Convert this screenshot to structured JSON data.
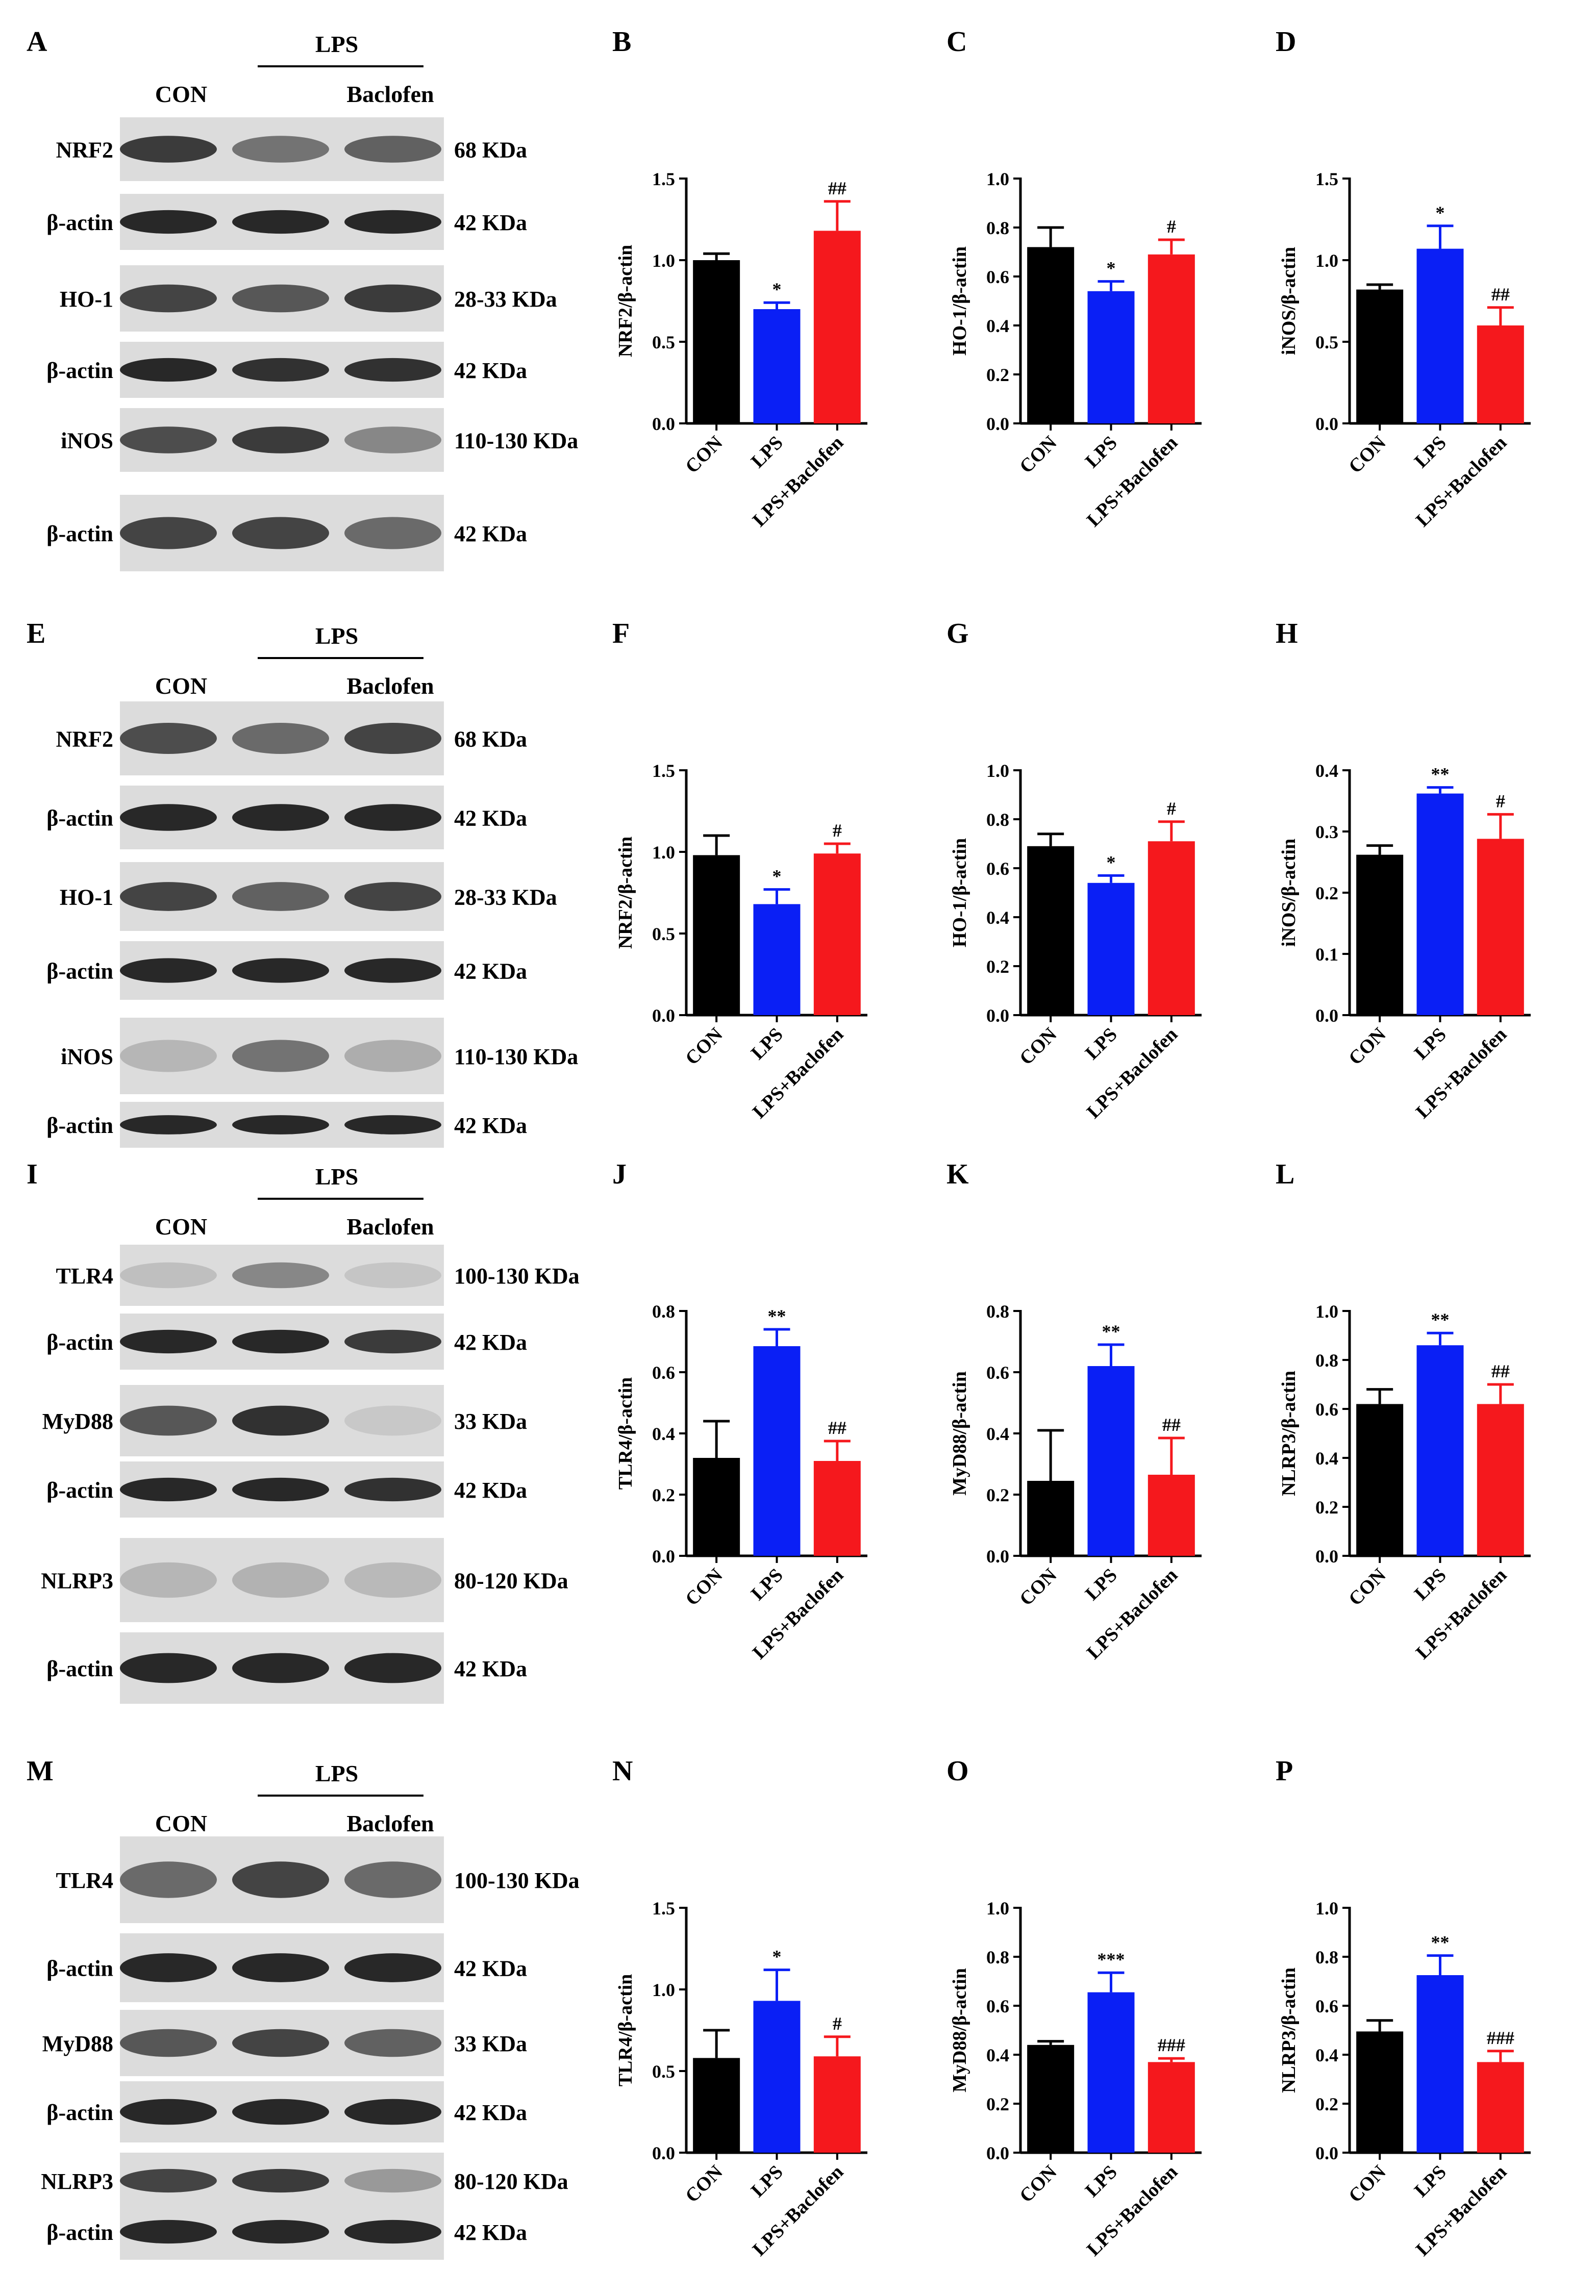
{
  "colors": {
    "CON": "#000000",
    "LPS": "#0a1ff5",
    "LPS+Baclofen": "#f5181d",
    "blot_bg": "#dcdcdc",
    "band": "#1e1e1e"
  },
  "blots": [
    {
      "letter": "A",
      "lps_label": "LPS",
      "con_label": "CON",
      "baclofen_label": "Baclofen",
      "rows": [
        {
          "name": "NRF2",
          "kda": "68 KDa",
          "intensity": [
            0.85,
            0.55,
            0.65
          ]
        },
        {
          "name": "β-actin",
          "kda": "42 KDa",
          "intensity": [
            0.95,
            0.95,
            0.95
          ]
        },
        {
          "name": "HO-1",
          "kda": "28-33 KDa",
          "intensity": [
            0.8,
            0.7,
            0.85
          ]
        },
        {
          "name": "β-actin",
          "kda": "42 KDa",
          "intensity": [
            0.95,
            0.9,
            0.9
          ]
        },
        {
          "name": "iNOS",
          "kda": "110-130 KDa",
          "intensity": [
            0.75,
            0.85,
            0.45
          ]
        },
        {
          "name": "β-actin",
          "kda": "42 KDa",
          "intensity": [
            0.8,
            0.8,
            0.6
          ]
        }
      ]
    },
    {
      "letter": "E",
      "lps_label": "LPS",
      "con_label": "CON",
      "baclofen_label": "Baclofen",
      "rows": [
        {
          "name": "NRF2",
          "kda": "68 KDa",
          "intensity": [
            0.75,
            0.6,
            0.8
          ]
        },
        {
          "name": "β-actin",
          "kda": "42 KDa",
          "intensity": [
            0.95,
            0.95,
            0.95
          ]
        },
        {
          "name": "HO-1",
          "kda": "28-33 KDa",
          "intensity": [
            0.8,
            0.65,
            0.8
          ]
        },
        {
          "name": "β-actin",
          "kda": "42 KDa",
          "intensity": [
            0.95,
            0.95,
            0.95
          ]
        },
        {
          "name": "iNOS",
          "kda": "110-130 KDa",
          "intensity": [
            0.2,
            0.55,
            0.25
          ]
        },
        {
          "name": "β-actin",
          "kda": "42 KDa",
          "intensity": [
            0.95,
            0.95,
            0.95
          ]
        }
      ]
    },
    {
      "letter": "I",
      "lps_label": "LPS",
      "con_label": "CON",
      "baclofen_label": "Baclofen",
      "rows": [
        {
          "name": "TLR4",
          "kda": "100-130 KDa",
          "intensity": [
            0.15,
            0.45,
            0.12
          ]
        },
        {
          "name": "β-actin",
          "kda": "42 KDa",
          "intensity": [
            0.95,
            0.95,
            0.85
          ]
        },
        {
          "name": "MyD88",
          "kda": "33 KDa",
          "intensity": [
            0.7,
            0.9,
            0.1
          ]
        },
        {
          "name": "β-actin",
          "kda": "42 KDa",
          "intensity": [
            0.95,
            0.95,
            0.9
          ]
        },
        {
          "name": "NLRP3",
          "kda": "80-120 KDa",
          "intensity": [
            0.2,
            0.22,
            0.18
          ]
        },
        {
          "name": "β-actin",
          "kda": "42 KDa",
          "intensity": [
            0.95,
            0.95,
            0.95
          ]
        }
      ]
    },
    {
      "letter": "M",
      "lps_label": "LPS",
      "con_label": "CON",
      "baclofen_label": "Baclofen",
      "rows": [
        {
          "name": "TLR4",
          "kda": "100-130 KDa",
          "intensity": [
            0.6,
            0.8,
            0.6
          ]
        },
        {
          "name": "β-actin",
          "kda": "42 KDa",
          "intensity": [
            0.95,
            0.95,
            0.95
          ]
        },
        {
          "name": "MyD88",
          "kda": "33 KDa",
          "intensity": [
            0.7,
            0.8,
            0.65
          ]
        },
        {
          "name": "β-actin",
          "kda": "42 KDa",
          "intensity": [
            0.95,
            0.95,
            0.95
          ]
        },
        {
          "name": "NLRP3",
          "kda": "80-120 KDa",
          "intensity": [
            0.8,
            0.85,
            0.35
          ]
        },
        {
          "name": "β-actin",
          "kda": "42 KDa",
          "intensity": [
            0.95,
            0.95,
            0.95
          ]
        }
      ]
    }
  ],
  "chart_data": [
    {
      "letter": "B",
      "type": "bar",
      "ylabel": "NRF2/β-actin",
      "categories": [
        "CON",
        "LPS",
        "LPS+Baclofen"
      ],
      "values": [
        1.0,
        0.7,
        1.18
      ],
      "errors": [
        0.04,
        0.04,
        0.18
      ],
      "sig": [
        "",
        "*",
        "##"
      ],
      "ylim": [
        0,
        1.5
      ],
      "yticks": [
        "0.0",
        "0.5",
        "1.0",
        "1.5"
      ]
    },
    {
      "letter": "C",
      "type": "bar",
      "ylabel": "HO-1/β-actin",
      "categories": [
        "CON",
        "LPS",
        "LPS+Baclofen"
      ],
      "values": [
        0.72,
        0.54,
        0.69
      ],
      "errors": [
        0.08,
        0.04,
        0.06
      ],
      "sig": [
        "",
        "*",
        "#"
      ],
      "ylim": [
        0,
        1.0
      ],
      "yticks": [
        "0.0",
        "0.2",
        "0.4",
        "0.6",
        "0.8",
        "1.0"
      ]
    },
    {
      "letter": "D",
      "type": "bar",
      "ylabel": "iNOS/β-actin",
      "categories": [
        "CON",
        "LPS",
        "LPS+Baclofen"
      ],
      "values": [
        0.82,
        1.07,
        0.6
      ],
      "errors": [
        0.03,
        0.14,
        0.11
      ],
      "sig": [
        "",
        "*",
        "##"
      ],
      "ylim": [
        0,
        1.5
      ],
      "yticks": [
        "0.0",
        "0.5",
        "1.0",
        "1.5"
      ]
    },
    {
      "letter": "F",
      "type": "bar",
      "ylabel": "NRF2/β-actin",
      "categories": [
        "CON",
        "LPS",
        "LPS+Baclofen"
      ],
      "values": [
        0.98,
        0.68,
        0.99
      ],
      "errors": [
        0.12,
        0.09,
        0.06
      ],
      "sig": [
        "",
        "*",
        "#"
      ],
      "ylim": [
        0,
        1.5
      ],
      "yticks": [
        "0.0",
        "0.5",
        "1.0",
        "1.5"
      ]
    },
    {
      "letter": "G",
      "type": "bar",
      "ylabel": "HO-1/β-actin",
      "categories": [
        "CON",
        "LPS",
        "LPS+Baclofen"
      ],
      "values": [
        0.69,
        0.54,
        0.71
      ],
      "errors": [
        0.05,
        0.03,
        0.08
      ],
      "sig": [
        "",
        "*",
        "#"
      ],
      "ylim": [
        0,
        1.0
      ],
      "yticks": [
        "0.0",
        "0.2",
        "0.4",
        "0.6",
        "0.8",
        "1.0"
      ]
    },
    {
      "letter": "H",
      "type": "bar",
      "ylabel": "iNOS/β-actin",
      "categories": [
        "CON",
        "LPS",
        "LPS+Baclofen"
      ],
      "values": [
        0.262,
        0.362,
        0.288
      ],
      "errors": [
        0.015,
        0.01,
        0.04
      ],
      "sig": [
        "",
        "**",
        "#"
      ],
      "ylim": [
        0,
        0.4
      ],
      "yticks": [
        "0.0",
        "0.1",
        "0.2",
        "0.3",
        "0.4"
      ]
    },
    {
      "letter": "J",
      "type": "bar",
      "ylabel": "TLR4/β-actin",
      "categories": [
        "CON",
        "LPS",
        "LPS+Baclofen"
      ],
      "values": [
        0.32,
        0.685,
        0.31
      ],
      "errors": [
        0.12,
        0.055,
        0.065
      ],
      "sig": [
        "",
        "**",
        "##"
      ],
      "ylim": [
        0,
        0.8
      ],
      "yticks": [
        "0.0",
        "0.2",
        "0.4",
        "0.6",
        "0.8"
      ]
    },
    {
      "letter": "K",
      "type": "bar",
      "ylabel": "MyD88/β-actin",
      "categories": [
        "CON",
        "LPS",
        "LPS+Baclofen"
      ],
      "values": [
        0.245,
        0.62,
        0.265
      ],
      "errors": [
        0.165,
        0.07,
        0.12
      ],
      "sig": [
        "",
        "**",
        "##"
      ],
      "ylim": [
        0,
        0.8
      ],
      "yticks": [
        "0.0",
        "0.2",
        "0.4",
        "0.6",
        "0.8"
      ]
    },
    {
      "letter": "L",
      "type": "bar",
      "ylabel": "NLRP3/β-actin",
      "categories": [
        "CON",
        "LPS",
        "LPS+Baclofen"
      ],
      "values": [
        0.62,
        0.86,
        0.62
      ],
      "errors": [
        0.06,
        0.05,
        0.08
      ],
      "sig": [
        "",
        "**",
        "##"
      ],
      "ylim": [
        0,
        1.0
      ],
      "yticks": [
        "0.0",
        "0.2",
        "0.4",
        "0.6",
        "0.8",
        "1.0"
      ]
    },
    {
      "letter": "N",
      "type": "bar",
      "ylabel": "TLR4/β-actin",
      "categories": [
        "CON",
        "LPS",
        "LPS+Baclofen"
      ],
      "values": [
        0.58,
        0.93,
        0.59
      ],
      "errors": [
        0.17,
        0.19,
        0.12
      ],
      "sig": [
        "",
        "*",
        "#"
      ],
      "ylim": [
        0,
        1.5
      ],
      "yticks": [
        "0.0",
        "0.5",
        "1.0",
        "1.5"
      ]
    },
    {
      "letter": "O",
      "type": "bar",
      "ylabel": "MyD88/β-actin",
      "categories": [
        "CON",
        "LPS",
        "LPS+Baclofen"
      ],
      "values": [
        0.44,
        0.655,
        0.37
      ],
      "errors": [
        0.015,
        0.08,
        0.015
      ],
      "sig": [
        "",
        "***",
        "###"
      ],
      "ylim": [
        0,
        1.0
      ],
      "yticks": [
        "0.0",
        "0.2",
        "0.4",
        "0.6",
        "0.8",
        "1.0"
      ]
    },
    {
      "letter": "P",
      "type": "bar",
      "ylabel": "NLRP3/β-actin",
      "categories": [
        "CON",
        "LPS",
        "LPS+Baclofen"
      ],
      "values": [
        0.495,
        0.725,
        0.37
      ],
      "errors": [
        0.045,
        0.08,
        0.045
      ],
      "sig": [
        "",
        "**",
        "###"
      ],
      "ylim": [
        0,
        1.0
      ],
      "yticks": [
        "0.0",
        "0.2",
        "0.4",
        "0.6",
        "0.8",
        "1.0"
      ]
    }
  ]
}
